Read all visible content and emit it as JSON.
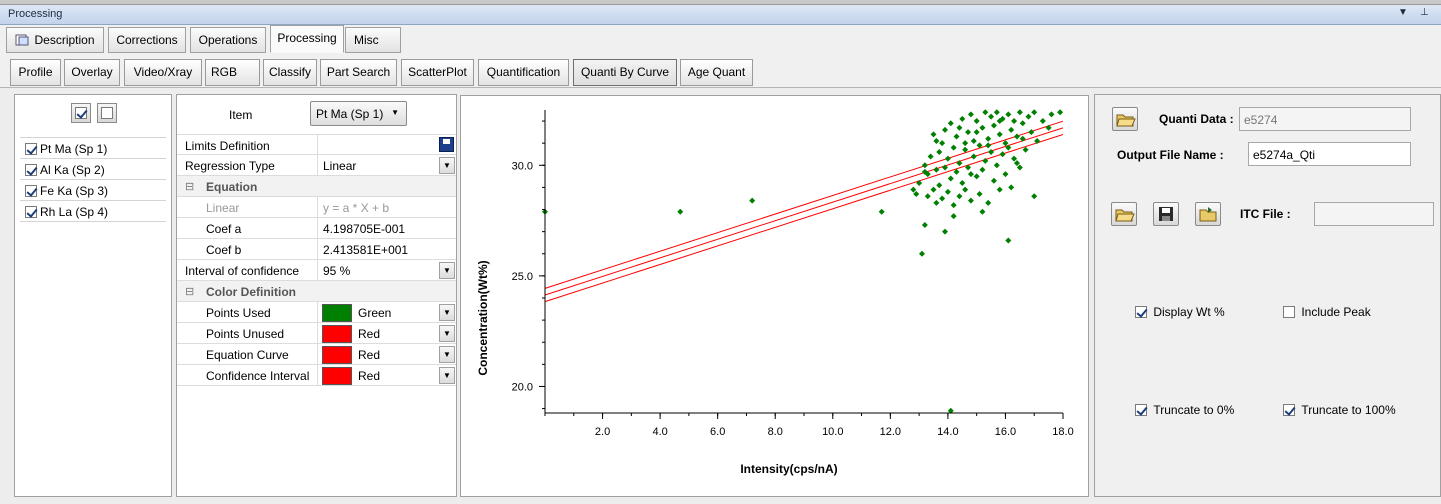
{
  "window": {
    "title": "Processing",
    "dock_glyphs": "▾ ⊥"
  },
  "tabs": [
    {
      "label": "Description",
      "icon": "document-icon"
    },
    {
      "label": "Corrections"
    },
    {
      "label": "Operations"
    },
    {
      "label": "Processing",
      "active": true
    },
    {
      "label": "Misc"
    }
  ],
  "subtabs": [
    "Profile",
    "Overlay",
    "Video/Xray",
    "RGB",
    "Classify",
    "Part Search",
    "ScatterPlot",
    "Quantification",
    "Quanti By Curve",
    "Age Quant"
  ],
  "active_subtab": "Quanti By Curve",
  "elements": [
    {
      "label": "Pt Ma (Sp 1)",
      "checked": true
    },
    {
      "label": "Al Ka (Sp 2)",
      "checked": true
    },
    {
      "label": "Fe Ka (Sp 3)",
      "checked": true
    },
    {
      "label": "Rh La (Sp 4)",
      "checked": true
    }
  ],
  "item": {
    "label": "Item",
    "selected": "Pt Ma (Sp 1)"
  },
  "properties": {
    "limits": "Limits Definition",
    "regression_label": "Regression Type",
    "regression_value": "Linear",
    "equation_group": "Equation",
    "eq_type": "Linear",
    "eq_formula": "y = a * X + b",
    "coef_a_label": "Coef a",
    "coef_a_value": "4.198705E-001",
    "coef_b_label": "Coef b",
    "coef_b_value": "2.413581E+001",
    "interval_label": "Interval of confidence",
    "interval_value": "95 %",
    "color_group": "Color Definition",
    "colors": [
      {
        "label": "Points Used",
        "name": "Green",
        "hex": "#008000"
      },
      {
        "label": "Points Unused",
        "name": "Red",
        "hex": "#ff0000"
      },
      {
        "label": "Equation Curve",
        "name": "Red",
        "hex": "#ff0000"
      },
      {
        "label": "Confidence Interval",
        "name": "Red",
        "hex": "#ff0000"
      }
    ]
  },
  "right_panel": {
    "quanti_data_label": "Quanti Data :",
    "quanti_data_value": "e5274",
    "output_label": "Output File Name :",
    "output_value": "e5274a_Qti",
    "itc_label": "ITC File :",
    "itc_value": "",
    "display_wt": {
      "label": "Display Wt %",
      "checked": true
    },
    "include_peak": {
      "label": "Include Peak",
      "checked": false
    },
    "truncate0": {
      "label": "Truncate to 0%",
      "checked": true
    },
    "truncate100": {
      "label": "Truncate to 100%",
      "checked": true
    }
  },
  "chart_data": {
    "type": "scatter",
    "xlabel": "Intensity(cps/nA)",
    "ylabel": "Concentration(Wt%)",
    "xlim": [
      0.0,
      18.0
    ],
    "ylim": [
      18.8,
      32.5
    ],
    "xticks": [
      2.0,
      4.0,
      6.0,
      8.0,
      10.0,
      12.0,
      14.0,
      16.0,
      18.0
    ],
    "yticks": [
      20.0,
      25.0,
      30.0
    ],
    "point_color": "#008000",
    "line_color": "#ff0000",
    "regression": {
      "a": 0.4198705,
      "b": 24.13581
    },
    "confidence_offset": 0.3,
    "points": [
      [
        0.0,
        27.9
      ],
      [
        4.7,
        27.9
      ],
      [
        7.2,
        28.4
      ],
      [
        11.7,
        27.9
      ],
      [
        12.8,
        28.9
      ],
      [
        12.9,
        28.7
      ],
      [
        13.0,
        29.2
      ],
      [
        13.1,
        26.0
      ],
      [
        13.2,
        27.3
      ],
      [
        13.2,
        30.0
      ],
      [
        13.3,
        28.6
      ],
      [
        13.3,
        29.6
      ],
      [
        13.4,
        30.4
      ],
      [
        13.5,
        28.9
      ],
      [
        13.5,
        31.4
      ],
      [
        13.6,
        29.8
      ],
      [
        13.6,
        28.3
      ],
      [
        13.7,
        30.6
      ],
      [
        13.7,
        29.1
      ],
      [
        13.8,
        31.0
      ],
      [
        13.8,
        28.5
      ],
      [
        13.9,
        29.9
      ],
      [
        13.9,
        31.6
      ],
      [
        14.0,
        28.8
      ],
      [
        14.0,
        30.3
      ],
      [
        14.1,
        29.4
      ],
      [
        14.1,
        31.9
      ],
      [
        14.2,
        28.2
      ],
      [
        14.2,
        30.8
      ],
      [
        14.2,
        27.7
      ],
      [
        14.3,
        29.7
      ],
      [
        14.3,
        31.3
      ],
      [
        14.4,
        28.6
      ],
      [
        14.4,
        30.1
      ],
      [
        14.5,
        32.1
      ],
      [
        14.5,
        29.2
      ],
      [
        14.6,
        30.7
      ],
      [
        14.6,
        28.9
      ],
      [
        14.7,
        31.5
      ],
      [
        14.7,
        29.9
      ],
      [
        14.8,
        32.3
      ],
      [
        14.8,
        28.4
      ],
      [
        14.9,
        30.4
      ],
      [
        14.9,
        31.1
      ],
      [
        15.0,
        29.5
      ],
      [
        15.0,
        32.0
      ],
      [
        15.1,
        30.9
      ],
      [
        15.1,
        28.7
      ],
      [
        15.2,
        31.7
      ],
      [
        15.2,
        29.8
      ],
      [
        15.3,
        32.4
      ],
      [
        15.3,
        30.2
      ],
      [
        15.4,
        31.2
      ],
      [
        15.4,
        28.3
      ],
      [
        15.5,
        32.2
      ],
      [
        15.5,
        30.6
      ],
      [
        15.6,
        29.3
      ],
      [
        15.6,
        31.8
      ],
      [
        15.7,
        32.4
      ],
      [
        15.7,
        30.0
      ],
      [
        15.8,
        31.4
      ],
      [
        15.8,
        28.9
      ],
      [
        15.9,
        32.1
      ],
      [
        15.9,
        30.5
      ],
      [
        16.0,
        31.0
      ],
      [
        16.0,
        29.6
      ],
      [
        16.1,
        32.3
      ],
      [
        16.1,
        30.8
      ],
      [
        16.2,
        31.6
      ],
      [
        16.2,
        29.0
      ],
      [
        16.3,
        32.0
      ],
      [
        16.3,
        30.3
      ],
      [
        16.4,
        31.3
      ],
      [
        16.5,
        32.4
      ],
      [
        16.5,
        29.9
      ],
      [
        16.6,
        31.9
      ],
      [
        16.7,
        30.7
      ],
      [
        16.8,
        32.2
      ],
      [
        16.9,
        31.5
      ],
      [
        17.0,
        32.4
      ],
      [
        17.1,
        31.1
      ],
      [
        17.3,
        32.0
      ],
      [
        17.5,
        31.7
      ],
      [
        17.6,
        32.3
      ],
      [
        17.9,
        32.4
      ],
      [
        16.1,
        26.6
      ],
      [
        17.0,
        28.6
      ],
      [
        14.1,
        18.9
      ],
      [
        13.2,
        29.7
      ],
      [
        15.2,
        27.9
      ],
      [
        14.6,
        31.0
      ],
      [
        15.4,
        30.9
      ],
      [
        16.4,
        30.1
      ],
      [
        13.9,
        27.0
      ],
      [
        14.8,
        29.6
      ],
      [
        15.0,
        31.5
      ],
      [
        15.8,
        32.0
      ],
      [
        16.6,
        31.2
      ],
      [
        13.6,
        31.1
      ],
      [
        14.4,
        31.7
      ]
    ]
  }
}
